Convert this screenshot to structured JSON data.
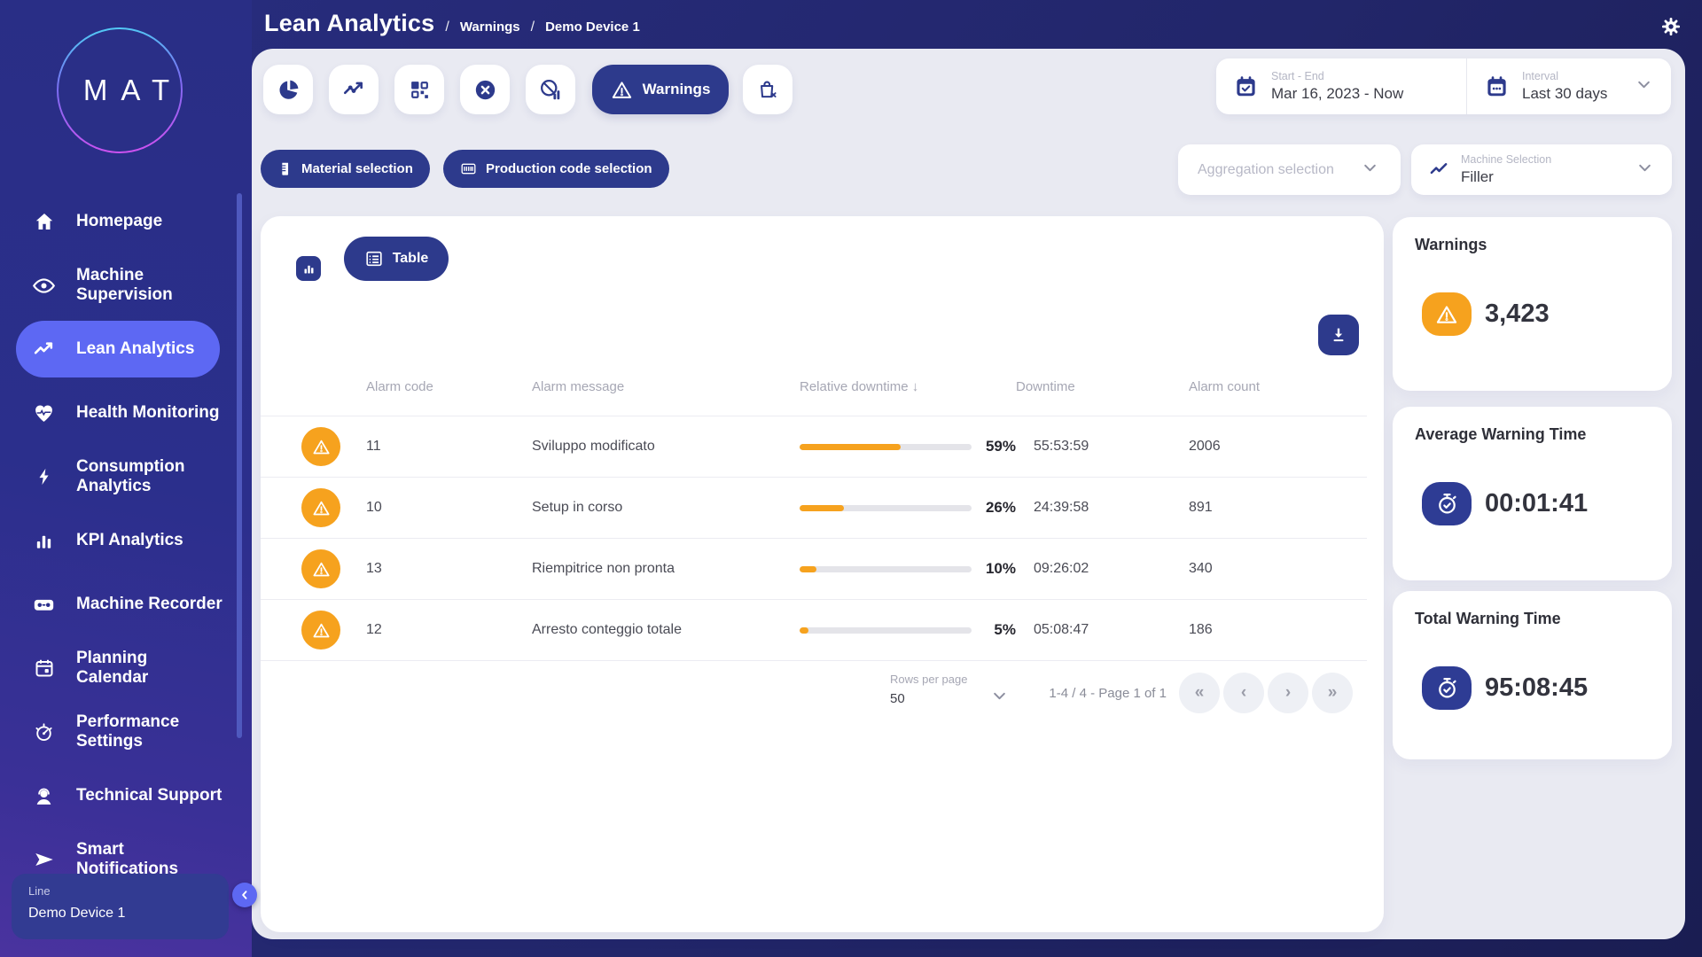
{
  "colors": {
    "accent": "#5d68f3",
    "navy": "#2d3a8c",
    "orange": "#f6a21e",
    "content_bg": "#e9eaf2"
  },
  "header": {
    "title": "Lean Analytics",
    "sep": "/",
    "crumb1": "Warnings",
    "crumb2": "Demo Device 1"
  },
  "sidebar": {
    "logo": "MAT",
    "items": [
      {
        "label": "Homepage",
        "icon": "home-icon"
      },
      {
        "label": "Machine\nSupervision",
        "icon": "eye-icon"
      },
      {
        "label": "Lean Analytics",
        "icon": "trend-icon",
        "active": true
      },
      {
        "label": "Health Monitoring",
        "icon": "heart-pulse-icon"
      },
      {
        "label": "Consumption\nAnalytics",
        "icon": "bolt-icon"
      },
      {
        "label": "KPI Analytics",
        "icon": "bar-chart-icon"
      },
      {
        "label": "Machine Recorder",
        "icon": "recorder-icon"
      },
      {
        "label": "Planning\nCalendar",
        "icon": "calendar-icon"
      },
      {
        "label": "Performance\nSettings",
        "icon": "gauge-icon"
      },
      {
        "label": "Technical Support",
        "icon": "support-icon"
      },
      {
        "label": "Smart\nNotifications",
        "icon": "send-icon"
      }
    ],
    "device_label": "Line",
    "device_value": "Demo Device 1",
    "collapse_icon": "‹"
  },
  "toolbar": {
    "warnings_label": "Warnings"
  },
  "daterange": {
    "start_end_label": "Start - End",
    "start_end_value": "Mar 16, 2023 - Now",
    "interval_label": "Interval",
    "interval_value": "Last 30 days"
  },
  "filters": {
    "material_label": "Material selection",
    "production_label": "Production code selection",
    "aggregation_placeholder": "Aggregation selection",
    "machine_label": "Machine Selection",
    "machine_value": "Filler"
  },
  "view": {
    "table_label": "Table"
  },
  "table": {
    "col_code": "Alarm code",
    "col_message": "Alarm message",
    "col_relative": "Relative downtime",
    "sort_icon": "↓",
    "col_downtime": "Downtime",
    "col_count": "Alarm count",
    "rows": [
      {
        "code": "11",
        "message": "Sviluppo modificato",
        "pct": 59,
        "pct_label": "59%",
        "downtime": "55:53:59",
        "count": "2006"
      },
      {
        "code": "10",
        "message": "Setup in corso",
        "pct": 26,
        "pct_label": "26%",
        "downtime": "24:39:58",
        "count": "891"
      },
      {
        "code": "13",
        "message": "Riempitrice non pronta",
        "pct": 10,
        "pct_label": "10%",
        "downtime": "09:26:02",
        "count": "340"
      },
      {
        "code": "12",
        "message": "Arresto conteggio totale",
        "pct": 5,
        "pct_label": "5%",
        "downtime": "05:08:47",
        "count": "186"
      }
    ],
    "pagination": {
      "rows_label": "Rows per page",
      "rows_value": "50",
      "range": "1-4 / 4 - Page 1 of 1",
      "first": "«",
      "prev": "‹",
      "next": "›",
      "last": "»"
    }
  },
  "cards": {
    "warnings_title": "Warnings",
    "warnings_value": "3,423",
    "avg_title": "Average Warning Time",
    "avg_value": "00:01:41",
    "total_title": "Total Warning Time",
    "total_value": "95:08:45"
  }
}
